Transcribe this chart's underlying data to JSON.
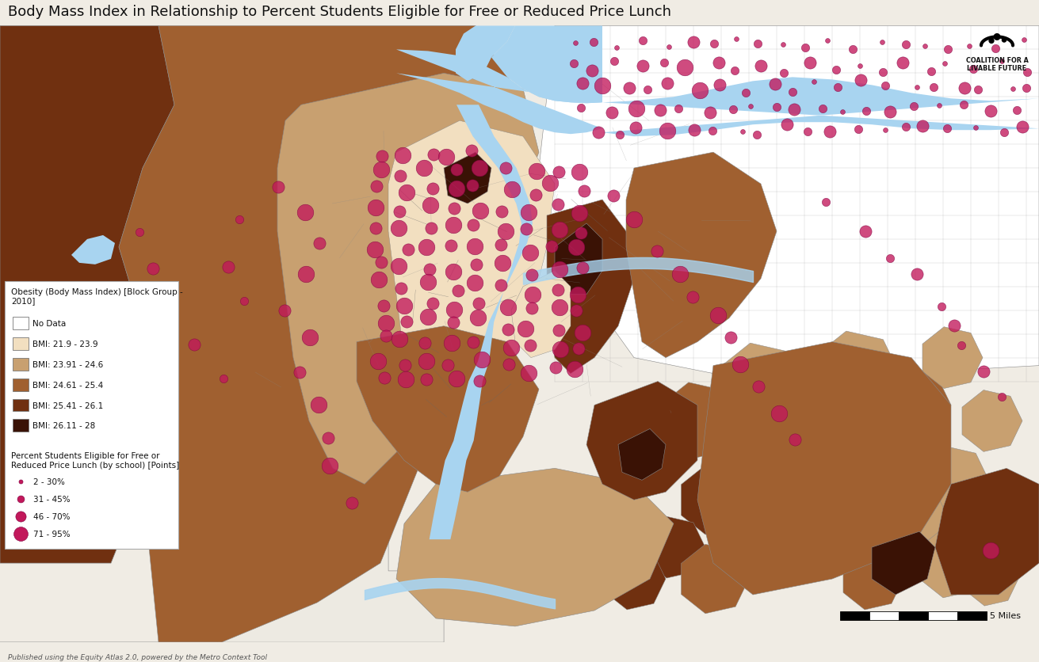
{
  "title": "Body Mass Index in Relationship to Percent Students Eligible for Free or Reduced Price Lunch",
  "title_fontsize": 13,
  "background_color": "#f0ece4",
  "map_bg_color": "#a07848",
  "bmi_colors": [
    "#ffffff",
    "#f2dfc0",
    "#c8a070",
    "#a06030",
    "#703010",
    "#3a1205"
  ],
  "bmi_labels": [
    "No Data",
    "BMI: 21.9 - 23.9",
    "BMI: 23.91 - 24.6",
    "BMI: 24.61 - 25.4",
    "BMI: 25.41 - 26.1",
    "BMI: 26.11 - 28"
  ],
  "legend1_title": "Obesity (Body Mass Index) [Block Group -\n2010]",
  "legend2_title": "Percent Students Eligible for Free or\nReduced Price Lunch (by school) [Points]",
  "dot_sizes": [
    18,
    55,
    120,
    220
  ],
  "dot_labels": [
    "2 - 30%",
    "31 - 45%",
    "46 - 70%",
    "71 - 95%"
  ],
  "dot_color": "#c2185b",
  "dot_edge_color": "#800040",
  "scale_bar_text": "5 Miles",
  "footer_text": "Published using the Equity Atlas 2.0, powered by the Metro Context Tool",
  "water_color": "#a8d4f0",
  "light_water_color": "#c0e0f8",
  "legend_bg": "#ffffff",
  "outline_color": "#888888",
  "thin_outline": "#aaaaaa",
  "nodata_color": "#f5f2ec",
  "nodata_bg": "#e8e4dc"
}
